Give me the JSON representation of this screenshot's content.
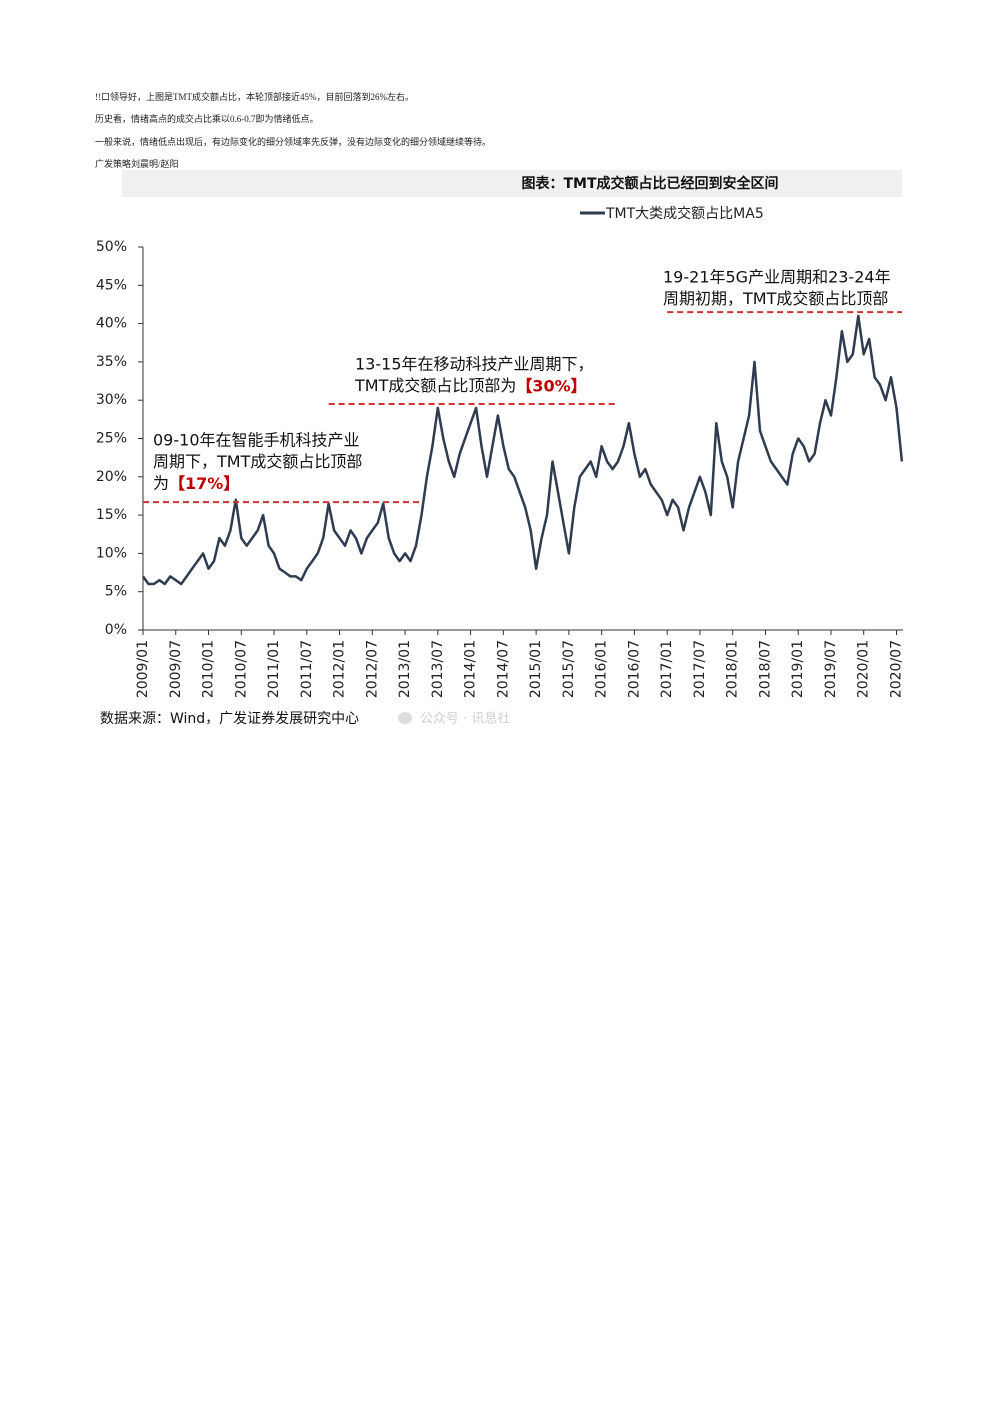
{
  "notes": [
    "!!口领导好，上图是TMT成交额占比，本轮顶部接近45%，目前回落到26%左右。",
    "历史看，情绪高点的成交占比乘以0.6-0.7即为情绪低点。",
    "一般来说，情绪低点出现后，有边际变化的细分领域率先反弹，没有边际变化的细分领域继续等待。",
    "广发策略刘晨明/赵阳"
  ],
  "chart_data": {
    "type": "line",
    "title": "图表：TMT成交额占比已经回到安全区间",
    "x": [
      "2009/01",
      "2009/02",
      "2009/03",
      "2009/04",
      "2009/05",
      "2009/06",
      "2009/07",
      "2009/08",
      "2009/09",
      "2009/10",
      "2009/11",
      "2009/12",
      "2010/01",
      "2010/02",
      "2010/03",
      "2010/04",
      "2010/05",
      "2010/06",
      "2010/07",
      "2010/08",
      "2010/09",
      "2010/10",
      "2010/11",
      "2010/12",
      "2011/01",
      "2011/02",
      "2011/03",
      "2011/04",
      "2011/05",
      "2011/06",
      "2011/07",
      "2011/08",
      "2011/09",
      "2011/10",
      "2011/11",
      "2011/12",
      "2012/01",
      "2012/02",
      "2012/03",
      "2012/04",
      "2012/05",
      "2012/06",
      "2012/07",
      "2012/08",
      "2012/09",
      "2012/10",
      "2012/11",
      "2012/12",
      "2013/01",
      "2013/02",
      "2013/03",
      "2013/04",
      "2013/05",
      "2013/06",
      "2013/07",
      "2013/08",
      "2013/09",
      "2013/10",
      "2013/11",
      "2013/12",
      "2014/01",
      "2014/02",
      "2014/03",
      "2014/04",
      "2014/05",
      "2014/06",
      "2014/07",
      "2014/08",
      "2014/09",
      "2014/10",
      "2014/11",
      "2014/12",
      "2015/01",
      "2015/02",
      "2015/03",
      "2015/04",
      "2015/05",
      "2015/06",
      "2015/07",
      "2015/08",
      "2015/09",
      "2015/10",
      "2015/11",
      "2015/12",
      "2016/01",
      "2016/02",
      "2016/03",
      "2016/04",
      "2016/05",
      "2016/06",
      "2016/07",
      "2016/08",
      "2016/09",
      "2016/10",
      "2016/11",
      "2016/12",
      "2017/01",
      "2017/02",
      "2017/03",
      "2017/04",
      "2017/05",
      "2017/06",
      "2017/07",
      "2017/08",
      "2017/09",
      "2017/10",
      "2017/11",
      "2017/12",
      "2018/01",
      "2018/02",
      "2018/03",
      "2018/04",
      "2018/05",
      "2018/06",
      "2018/07",
      "2018/08",
      "2018/09",
      "2018/10",
      "2018/11",
      "2018/12",
      "2019/01",
      "2019/02",
      "2019/03",
      "2019/04",
      "2019/05",
      "2019/06",
      "2019/07",
      "2019/08",
      "2019/09",
      "2019/10",
      "2019/11",
      "2019/12",
      "2020/01",
      "2020/02",
      "2020/03",
      "2020/04",
      "2020/05",
      "2020/06",
      "2020/07",
      "2020/08"
    ],
    "series": [
      {
        "name": "TMT大类成交额占比MA5",
        "color": "#2f3c4f",
        "values": [
          7,
          6,
          6,
          6.5,
          6,
          7,
          6.5,
          6,
          7,
          8,
          9,
          10,
          8,
          9,
          12,
          11,
          13,
          17,
          12,
          11,
          12,
          13,
          15,
          11,
          10,
          8,
          7.5,
          7,
          7,
          6.5,
          8,
          9,
          10,
          12,
          16.5,
          13,
          12,
          11,
          13,
          12,
          10,
          12,
          13,
          14,
          16.5,
          12,
          10,
          9,
          10,
          9,
          11,
          15,
          20,
          24,
          29,
          25,
          22,
          20,
          23,
          25,
          27,
          29,
          24,
          20,
          24,
          28,
          24,
          21,
          20,
          18,
          16,
          13,
          8,
          12,
          15,
          22,
          18,
          14,
          10,
          16,
          20,
          21,
          22,
          20,
          24,
          22,
          21,
          22,
          24,
          27,
          23,
          20,
          21,
          19,
          18,
          17,
          15,
          17,
          16,
          13,
          16,
          18,
          20,
          18,
          15,
          27,
          22,
          20,
          16,
          22,
          25,
          28,
          35,
          26,
          24,
          22,
          21,
          20,
          19,
          23,
          25,
          24,
          22,
          23,
          27,
          30,
          28,
          33,
          39,
          35,
          36,
          41,
          36,
          38,
          33,
          32,
          30,
          33,
          29,
          22
        ]
      }
    ],
    "ylim": [
      0,
      50
    ],
    "yticks": [
      {
        "value": 0,
        "label": "0%"
      },
      {
        "value": 5,
        "label": "5%"
      },
      {
        "value": 10,
        "label": "10%"
      },
      {
        "value": 15,
        "label": "15%"
      },
      {
        "value": 20,
        "label": "20%"
      },
      {
        "value": 25,
        "label": "25%"
      },
      {
        "value": 30,
        "label": "30%"
      },
      {
        "value": 35,
        "label": "35%"
      },
      {
        "value": 40,
        "label": "40%"
      },
      {
        "value": 45,
        "label": "45%"
      },
      {
        "value": 50,
        "label": "50%"
      }
    ],
    "xticks": [
      "2009/01",
      "2009/07",
      "2010/01",
      "2010/07",
      "2011/01",
      "2011/07",
      "2012/01",
      "2012/07",
      "2013/01",
      "2013/07",
      "2014/01",
      "2014/07",
      "2015/01",
      "2015/07",
      "2016/01",
      "2016/07",
      "2017/01",
      "2017/07",
      "2018/01",
      "2018/07",
      "2019/01",
      "2019/07",
      "2020/01",
      "2020/07"
    ],
    "annotations": [
      {
        "lines": [
          "09-10年在智能手机科技产业",
          "周期下，TMT成交额占比顶部",
          "为"
        ],
        "highlight": "【17%】",
        "y": 16.7,
        "x_start": "2009/01",
        "x_end": "2013/04"
      },
      {
        "lines": [
          "13-15年在移动科技产业周期下，",
          "TMT成交额占比顶部为"
        ],
        "highlight": "【30%】",
        "y": 29.5,
        "x_start": "2011/11",
        "x_end": "2016/04"
      },
      {
        "lines": [
          "19-21年5G产业周期和23-24年",
          "周期初期，TMT成交额占比顶部"
        ],
        "y": 41.5,
        "x_start": "2017/01",
        "x_end": "2020/08"
      }
    ],
    "source": "数据来源：Wind，广发证券发展研究中心",
    "watermark": "公众号 · 讯息社"
  }
}
